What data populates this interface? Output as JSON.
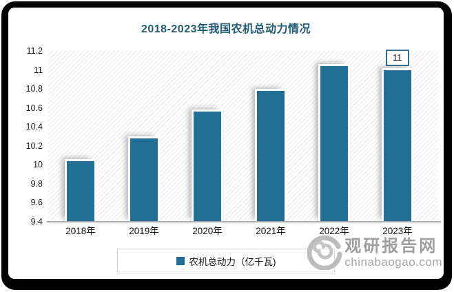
{
  "window": {
    "frame_color": "#000000",
    "background_color": "#ffffff"
  },
  "title": {
    "text": "2018-2023年我国农机总动力情况",
    "color": "#215a73"
  },
  "chart_data": {
    "type": "bar",
    "title": "2018-2023年我国农机总动力情况",
    "categories": [
      "2018年",
      "2019年",
      "2020年",
      "2021年",
      "2022年",
      "2023年"
    ],
    "series": [
      {
        "name": "农机总动力（亿千瓦)",
        "values": [
          10.04,
          10.28,
          10.56,
          10.78,
          11.04,
          11
        ]
      }
    ],
    "xlabel": "",
    "ylabel": "",
    "ylim": [
      9.4,
      11.2
    ],
    "ytick_step": 0.2,
    "yticks": [
      11.2,
      11,
      10.8,
      10.6,
      10.4,
      10.2,
      10,
      9.8,
      9.6,
      9.4
    ],
    "point_labels": [
      {
        "category": "2023年",
        "index": 5,
        "text": "11"
      }
    ],
    "bar_color": "#216f93",
    "grid": false,
    "legend_position": "bottom-center",
    "plot_background": "diagonal-hatch"
  },
  "legend": {
    "items": [
      {
        "label": "农机总动力（亿千瓦)",
        "marker_color": "#216f93"
      }
    ]
  },
  "watermark": {
    "site_name": "观研报告网",
    "site_domain": "chinabaogao.com"
  }
}
